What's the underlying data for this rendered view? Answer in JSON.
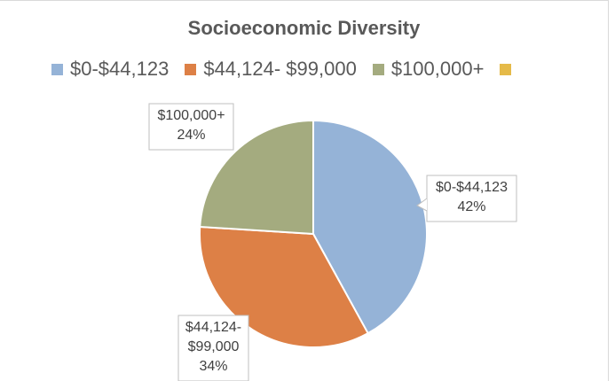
{
  "chart_data": {
    "type": "pie",
    "title": "Socioeconomic Diversity",
    "categories": [
      "$0-$44,123",
      "$44,124- $99,000",
      "$100,000+",
      ""
    ],
    "values": [
      42,
      34,
      24,
      0
    ],
    "value_unit": "%",
    "colors": [
      "#95b3d7",
      "#dd8046",
      "#a4ab7f",
      "#e5ba49"
    ],
    "legend": "top",
    "data_labels": [
      {
        "category_lines": [
          "$0-$44,123"
        ],
        "value_text": "42%"
      },
      {
        "category_lines": [
          "$44,124-",
          "$99,000"
        ],
        "value_text": "34%"
      },
      {
        "category_lines": [
          "$100,000+"
        ],
        "value_text": "24%"
      }
    ]
  }
}
